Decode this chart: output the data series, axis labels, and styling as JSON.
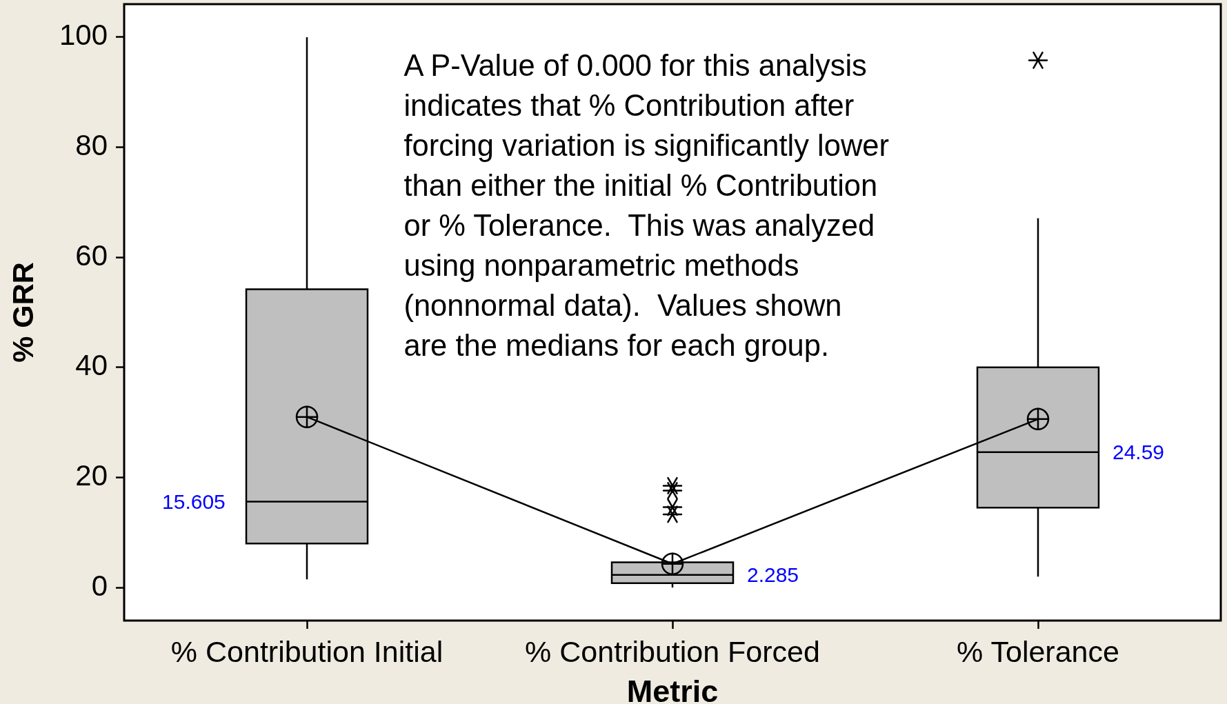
{
  "chart_data": {
    "type": "box",
    "xlabel": "Metric",
    "ylabel": "% GRR",
    "categories": [
      "% Contribution Initial",
      "% Contribution Forced",
      "% Tolerance"
    ],
    "series": [
      {
        "type": "box",
        "color": "#bfbfbf",
        "boxes": [
          {
            "low": 1.5,
            "q1": 8,
            "median": 15.605,
            "q3": 54.2,
            "high": 100
          },
          {
            "low": 0,
            "q1": 0.8,
            "median": 2.285,
            "q3": 4.6,
            "high": null,
            "outliers": [
              18.5,
              17.6,
              14.6,
              13.3
            ]
          },
          {
            "low": 2,
            "q1": 14.5,
            "median": 24.59,
            "q3": 40,
            "high": 67.1,
            "outliers": [
              95.8
            ]
          }
        ]
      },
      {
        "type": "line",
        "color": "#000000",
        "values": [
          31,
          4.3,
          30.6
        ],
        "marker": "circle",
        "line_style": "solid"
      }
    ],
    "ylim": [
      -6,
      106
    ],
    "yticks": [
      0,
      20,
      40,
      60,
      80,
      100
    ],
    "grid": false,
    "legend": false,
    "annotations": [
      "A P-Value of 0.000 for this analysis indicates that % Contribution after forcing variation is significantly lower than either the initial % Contribution or % Tolerance.  This was analyzed using nonparametric methods (nonnormal data).  Values shown are the medians for each group.",
      "15.605",
      "2.285",
      "24.59"
    ]
  }
}
